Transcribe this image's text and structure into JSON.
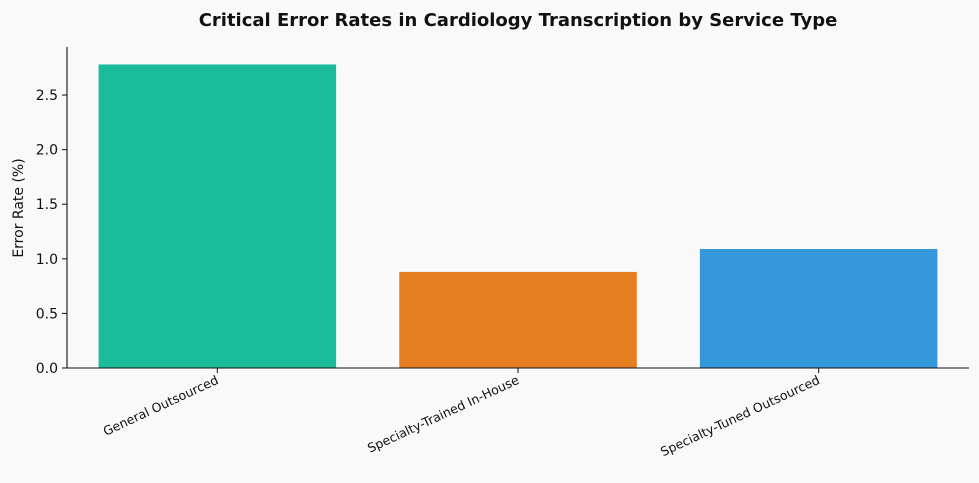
{
  "chart_data": {
    "type": "bar",
    "title": "Critical Error Rates in Cardiology Transcription by Service Type",
    "xlabel": "",
    "ylabel": "Error Rate (%)",
    "categories": [
      "General Outsourced",
      "Specialty-Trained In-House",
      "Specialty-Tuned Outsourced"
    ],
    "values": [
      2.78,
      0.88,
      1.09
    ],
    "colors": [
      "#1abc9c",
      "#e67e22",
      "#3498db"
    ],
    "ylim": [
      0,
      2.94
    ],
    "yticks": [
      0.0,
      0.5,
      1.0,
      1.5,
      2.0,
      2.5
    ],
    "ytick_labels": [
      "0.0",
      "0.5",
      "1.0",
      "1.5",
      "2.0",
      "2.5"
    ],
    "grid": false,
    "legend": "none"
  }
}
